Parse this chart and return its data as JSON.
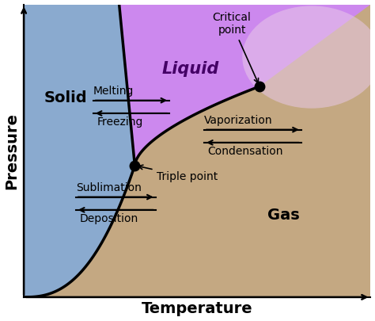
{
  "xlabel": "Temperature",
  "ylabel": "Pressure",
  "xlim": [
    0,
    10
  ],
  "ylim": [
    0,
    10
  ],
  "solid_color": "#8aaacf",
  "liquid_color": "#cc88ee",
  "gas_color": "#c4a882",
  "supercrit_color": "#e8c8e8",
  "critical_point": [
    6.8,
    7.2
  ],
  "triple_point": [
    3.2,
    4.5
  ],
  "solid_label": "Solid",
  "liquid_label": "Liquid",
  "gas_label": "Gas",
  "critical_label": "Critical\npoint",
  "triple_label": "Triple point",
  "melting_label": "Melting",
  "freezing_label": "Freezing",
  "vaporization_label": "Vaporization",
  "condensation_label": "Condensation",
  "sublimation_label": "Sublimation",
  "deposition_label": "Deposition",
  "label_fontsize": 14,
  "axis_label_fontsize": 14,
  "annotation_fontsize": 10
}
